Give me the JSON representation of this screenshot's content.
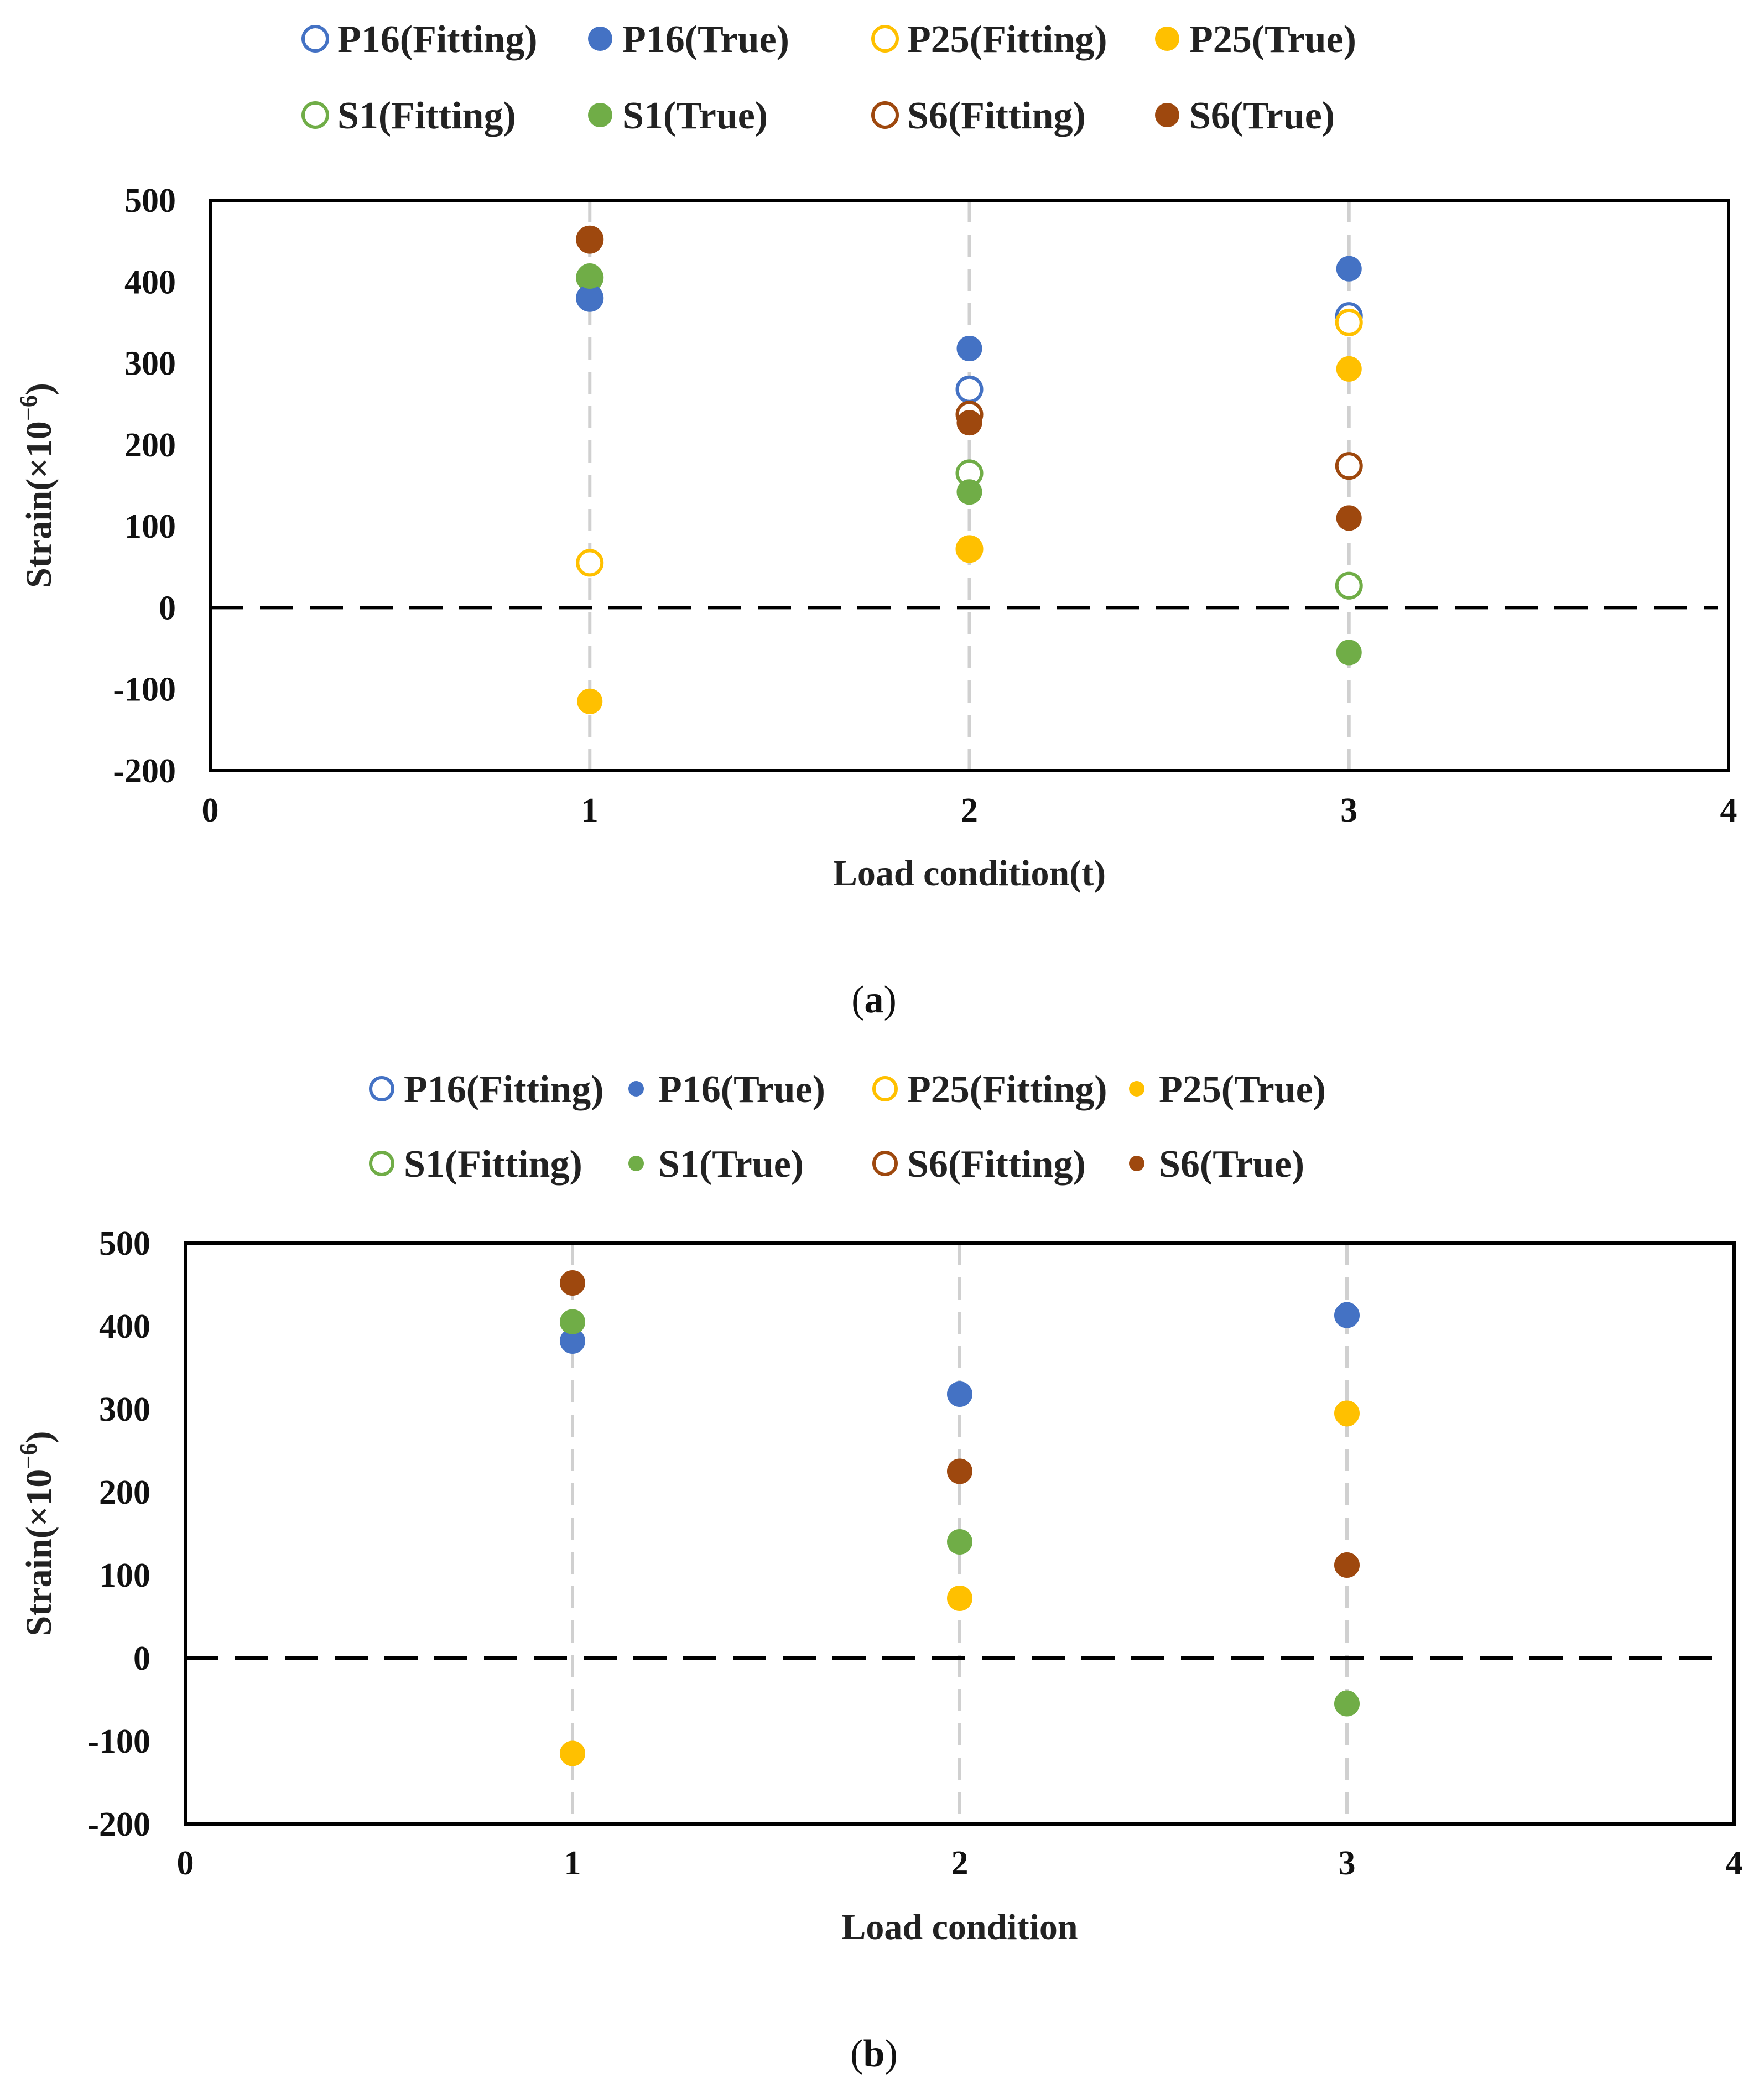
{
  "chart_data": [
    {
      "type": "scatter",
      "panel_label": "a",
      "xlabel": "Load condition(t)",
      "ylabel_prefix": "Strain(×10",
      "ylabel_exponent": "−6",
      "ylabel_suffix": ")",
      "xlim": [
        0,
        4
      ],
      "ylim": [
        -200,
        500
      ],
      "x_ticks": [
        0,
        1,
        2,
        3,
        4
      ],
      "y_ticks": [
        -200,
        -100,
        0,
        100,
        200,
        300,
        400,
        500
      ],
      "zero_line": "dashed",
      "vertical_guides_at": [
        1,
        2,
        3
      ],
      "legend_position": "top",
      "legend": [
        "P16(Fitting)",
        "P16(True)",
        "P25(Fitting)",
        "P25(True)",
        "S1(Fitting)",
        "S1(True)",
        "S6(Fitting)",
        "S6(True)"
      ],
      "series": [
        {
          "name": "P16(Fitting)",
          "marker": "open",
          "color": "#4472C4",
          "x": [
            1,
            2,
            3
          ],
          "values": [
            380,
            268,
            358
          ]
        },
        {
          "name": "P16(True)",
          "marker": "filled",
          "color": "#4472C4",
          "x": [
            1,
            2,
            3
          ],
          "values": [
            382,
            318,
            416
          ]
        },
        {
          "name": "P25(Fitting)",
          "marker": "open",
          "color": "#FFC000",
          "x": [
            1,
            2,
            3
          ],
          "values": [
            55,
            72,
            350
          ]
        },
        {
          "name": "P25(True)",
          "marker": "filled",
          "color": "#FFC000",
          "x": [
            1,
            2,
            3
          ],
          "values": [
            -115,
            72,
            293
          ]
        },
        {
          "name": "S1(Fitting)",
          "marker": "open",
          "color": "#70AD47",
          "x": [
            1,
            2,
            3
          ],
          "values": [
            405,
            165,
            27
          ]
        },
        {
          "name": "S1(True)",
          "marker": "filled",
          "color": "#70AD47",
          "x": [
            1,
            2,
            3
          ],
          "values": [
            407,
            142,
            -55
          ]
        },
        {
          "name": "S6(Fitting)",
          "marker": "open",
          "color": "#9E480E",
          "x": [
            1,
            2,
            3
          ],
          "values": [
            452,
            237,
            174
          ]
        },
        {
          "name": "S6(True)",
          "marker": "filled",
          "color": "#9E480E",
          "x": [
            1,
            2,
            3
          ],
          "values": [
            450,
            227,
            110
          ]
        }
      ]
    },
    {
      "type": "scatter",
      "panel_label": "b",
      "xlabel": "Load condition",
      "ylabel_prefix": "Strain(×10",
      "ylabel_exponent": "−6",
      "ylabel_suffix": ")",
      "xlim": [
        0,
        4
      ],
      "ylim": [
        -200,
        500
      ],
      "x_ticks": [
        0,
        1,
        2,
        3,
        4
      ],
      "y_ticks": [
        -200,
        -100,
        0,
        100,
        200,
        300,
        400,
        500
      ],
      "zero_line": "dashed",
      "vertical_guides_at": [
        1,
        2,
        3
      ],
      "legend_position": "top",
      "legend": [
        "P16(Fitting)",
        "P16(True)",
        "P25(Fitting)",
        "P25(True)",
        "S1(Fitting)",
        "S1(True)",
        "S6(Fitting)",
        "S6(True)"
      ],
      "series": [
        {
          "name": "P16(Fitting)",
          "marker": "open",
          "color": "#4472C4",
          "x": [
            1,
            2,
            3
          ],
          "values": [
            382,
            318,
            413
          ]
        },
        {
          "name": "P16(True)",
          "marker": "filled",
          "color": "#4472C4",
          "x": [
            1,
            2,
            3
          ],
          "values": [
            382,
            318,
            415
          ]
        },
        {
          "name": "P25(Fitting)",
          "marker": "open",
          "color": "#FFC000",
          "x": [
            1,
            2,
            3
          ],
          "values": [
            -115,
            72,
            295
          ]
        },
        {
          "name": "P25(True)",
          "marker": "filled",
          "color": "#FFC000",
          "x": [
            1,
            2,
            3
          ],
          "values": [
            -115,
            72,
            293
          ]
        },
        {
          "name": "S1(Fitting)",
          "marker": "open",
          "color": "#70AD47",
          "x": [
            1,
            2,
            3
          ],
          "values": [
            405,
            140,
            -55
          ]
        },
        {
          "name": "S1(True)",
          "marker": "filled",
          "color": "#70AD47",
          "x": [
            1,
            2,
            3
          ],
          "values": [
            404,
            139,
            -53
          ]
        },
        {
          "name": "S6(Fitting)",
          "marker": "open",
          "color": "#9E480E",
          "x": [
            1,
            2,
            3
          ],
          "values": [
            452,
            225,
            112
          ]
        },
        {
          "name": "S6(True)",
          "marker": "filled",
          "color": "#9E480E",
          "x": [
            1,
            2,
            3
          ],
          "values": [
            452,
            225,
            112
          ]
        }
      ]
    }
  ]
}
